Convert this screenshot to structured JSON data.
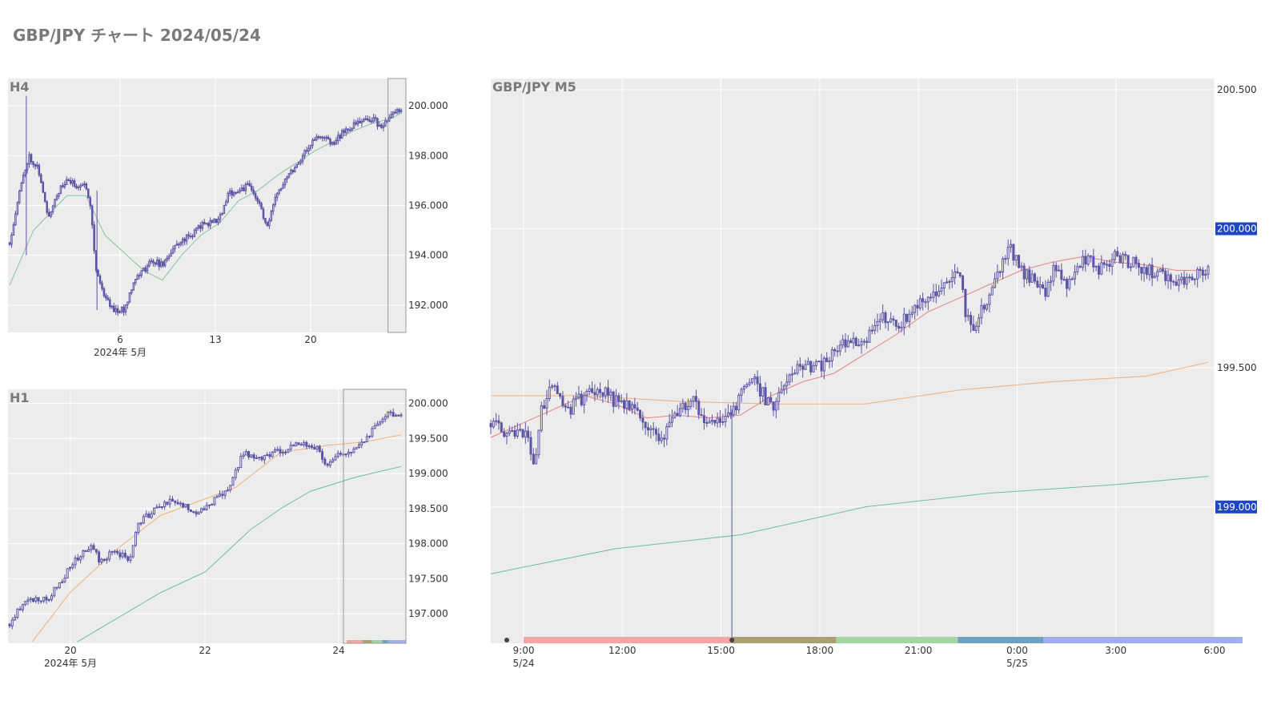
{
  "page": {
    "title": "GBP/JPY チャート 2024/05/24"
  },
  "colors": {
    "candle": "#5c54a4",
    "sma_short": "#e88080",
    "sma_mid": "#f2b07a",
    "sma_long": "#6cc09a",
    "h4_ma": "#86c6a0",
    "price_badge": "#1e46c8",
    "session_sydney": "#f4a6a6",
    "session_tokyo": "#a8a070",
    "session_london": "#a6d4a6",
    "session_overlap": "#6fa0c0",
    "session_newyork": "#a0aef0"
  },
  "chart_data": [
    {
      "id": "h4",
      "type": "candlestick",
      "title": "H4",
      "x_ticks": [
        "6",
        "13",
        "20"
      ],
      "x_sub_label": "2024年 5月",
      "y_ticks": [
        "200.000",
        "198.000",
        "196.000",
        "194.000",
        "192.000"
      ],
      "ylim": [
        190.9,
        201.1
      ],
      "series": [
        {
          "name": "",
          "kind": "candles",
          "path": [
            [
              0,
              194.5
            ],
            [
              2,
              196.5
            ],
            [
              4,
              198
            ],
            [
              6,
              197.5
            ],
            [
              8,
              195.5
            ],
            [
              10,
              196.5
            ],
            [
              12,
              197
            ],
            [
              14,
              196.8
            ],
            [
              16,
              196.8
            ],
            [
              17,
              196
            ],
            [
              18,
              193.5
            ],
            [
              20,
              192.3
            ],
            [
              22,
              191.8
            ],
            [
              24,
              191.8
            ],
            [
              26,
              193
            ],
            [
              28,
              193.4
            ],
            [
              30,
              193.8
            ],
            [
              32,
              193.6
            ],
            [
              34,
              194.2
            ],
            [
              36,
              194.6
            ],
            [
              38,
              194.8
            ],
            [
              40,
              195.2
            ],
            [
              42,
              195.3
            ],
            [
              44,
              195.5
            ],
            [
              46,
              196.5
            ],
            [
              48,
              196.6
            ],
            [
              50,
              196.8
            ],
            [
              52,
              196.2
            ],
            [
              54,
              195.1
            ],
            [
              56,
              196.5
            ],
            [
              58,
              197.2
            ],
            [
              60,
              197.6
            ],
            [
              62,
              198.2
            ],
            [
              64,
              198.7
            ],
            [
              66,
              198.7
            ],
            [
              68,
              198.5
            ],
            [
              70,
              199
            ],
            [
              72,
              199.2
            ],
            [
              74,
              199.4
            ],
            [
              76,
              199.5
            ],
            [
              78,
              199.1
            ],
            [
              80,
              199.6
            ],
            [
              82,
              199.9
            ]
          ],
          "n": 200
        },
        {
          "name": "",
          "kind": "line",
          "color_key": "h4_ma",
          "path": [
            [
              0,
              192.8
            ],
            [
              5,
              195
            ],
            [
              12,
              196.4
            ],
            [
              16,
              196.4
            ],
            [
              20,
              194.8
            ],
            [
              28,
              193.4
            ],
            [
              32,
              193
            ],
            [
              36,
              194
            ],
            [
              40,
              194.8
            ],
            [
              44,
              195.3
            ],
            [
              48,
              196.2
            ],
            [
              52,
              196.6
            ],
            [
              56,
              197.2
            ],
            [
              60,
              197.7
            ],
            [
              64,
              198.2
            ],
            [
              68,
              198.6
            ],
            [
              72,
              199
            ],
            [
              76,
              199.3
            ],
            [
              80,
              199.5
            ],
            [
              82,
              199.7
            ]
          ]
        }
      ],
      "highlight_x": [
        0.955,
        1.0
      ]
    },
    {
      "id": "h1",
      "type": "candlestick",
      "title": "H1",
      "x_ticks": [
        "20",
        "22",
        "24"
      ],
      "x_sub_label": "2024年 5月",
      "y_ticks": [
        "200.000",
        "199.500",
        "199.000",
        "198.500",
        "198.000",
        "197.500",
        "197.000"
      ],
      "ylim": [
        196.58,
        200.2
      ],
      "series": [
        {
          "name": "",
          "kind": "candles",
          "path": [
            [
              0,
              196.85
            ],
            [
              2,
              197.2
            ],
            [
              5,
              197.2
            ],
            [
              7,
              197.5
            ],
            [
              9,
              197.8
            ],
            [
              11,
              197.95
            ],
            [
              12,
              197.75
            ],
            [
              14,
              197.9
            ],
            [
              16,
              197.75
            ],
            [
              17,
              198.3
            ],
            [
              19,
              198.45
            ],
            [
              21,
              198.6
            ],
            [
              23,
              198.55
            ],
            [
              25,
              198.45
            ],
            [
              27,
              198.6
            ],
            [
              29,
              198.75
            ],
            [
              31,
              199.3
            ],
            [
              33,
              199.2
            ],
            [
              35,
              199.3
            ],
            [
              37,
              199.35
            ],
            [
              39,
              199.45
            ],
            [
              41,
              199.35
            ],
            [
              42,
              199.1
            ],
            [
              44,
              199.3
            ],
            [
              46,
              199.35
            ],
            [
              48,
              199.6
            ],
            [
              50,
              199.85
            ],
            [
              52,
              199.85
            ]
          ],
          "n": 150
        },
        {
          "name": "",
          "kind": "line",
          "color_key": "sma_mid",
          "path": [
            [
              3,
              196.6
            ],
            [
              8,
              197.3
            ],
            [
              14,
              197.9
            ],
            [
              20,
              198.4
            ],
            [
              25,
              198.6
            ],
            [
              30,
              198.8
            ],
            [
              36,
              199.3
            ],
            [
              42,
              199.4
            ],
            [
              47,
              199.45
            ],
            [
              52,
              199.55
            ]
          ]
        },
        {
          "name": "",
          "kind": "line",
          "color_key": "sma_long",
          "path": [
            [
              9,
              196.6
            ],
            [
              20,
              197.3
            ],
            [
              26,
              197.6
            ],
            [
              32,
              198.2
            ],
            [
              36,
              198.5
            ],
            [
              40,
              198.75
            ],
            [
              46,
              198.95
            ],
            [
              52,
              199.1
            ]
          ]
        }
      ],
      "highlight_x": [
        0.843,
        1.0
      ]
    },
    {
      "id": "m5",
      "type": "candlestick",
      "title": "GBP/JPY M5",
      "x_ticks": [
        {
          "time": "9:00",
          "date": "5/24"
        },
        {
          "time": "12:00",
          "date": ""
        },
        {
          "time": "15:00",
          "date": ""
        },
        {
          "time": "18:00",
          "date": ""
        },
        {
          "time": "21:00",
          "date": ""
        },
        {
          "time": "0:00",
          "date": "5/25"
        },
        {
          "time": "3:00",
          "date": ""
        },
        {
          "time": "6:00",
          "date": ""
        }
      ],
      "y_ticks": [
        "200.500",
        "200.000",
        "199.500",
        "199.000"
      ],
      "price_badges": [
        "200.000",
        "199.000"
      ],
      "ylim": [
        198.51,
        200.54
      ],
      "xlim_hours": [
        0,
        23
      ],
      "series": [
        {
          "name": "",
          "kind": "candles",
          "path": [
            [
              0,
              199.3
            ],
            [
              0.5,
              199.27
            ],
            [
              1.2,
              199.25
            ],
            [
              1.4,
              199.15
            ],
            [
              1.6,
              199.35
            ],
            [
              2,
              199.45
            ],
            [
              2.5,
              199.35
            ],
            [
              3,
              199.4
            ],
            [
              3.5,
              199.42
            ],
            [
              4,
              199.38
            ],
            [
              4.5,
              199.35
            ],
            [
              5,
              199.3
            ],
            [
              5.5,
              199.25
            ],
            [
              6,
              199.35
            ],
            [
              6.5,
              199.38
            ],
            [
              7,
              199.3
            ],
            [
              7.2,
              199.3
            ],
            [
              7.5,
              199.3
            ],
            [
              8,
              199.4
            ],
            [
              8.5,
              199.45
            ],
            [
              9,
              199.35
            ],
            [
              9.5,
              199.45
            ],
            [
              9.8,
              199.5
            ],
            [
              10.5,
              199.5
            ],
            [
              11,
              199.55
            ],
            [
              11.5,
              199.6
            ],
            [
              12,
              199.6
            ],
            [
              12.2,
              199.65
            ],
            [
              12.5,
              199.7
            ],
            [
              13,
              199.65
            ],
            [
              13.5,
              199.7
            ],
            [
              14,
              199.75
            ],
            [
              14.5,
              199.8
            ],
            [
              15,
              199.85
            ],
            [
              15,
              199.9
            ],
            [
              15.2,
              199.7
            ],
            [
              15.5,
              199.65
            ],
            [
              15.9,
              199.75
            ],
            [
              16.3,
              199.85
            ],
            [
              16.6,
              199.95
            ],
            [
              17,
              199.85
            ],
            [
              17.5,
              199.8
            ],
            [
              17.8,
              199.75
            ],
            [
              18,
              199.85
            ],
            [
              18.5,
              199.8
            ],
            [
              19,
              199.9
            ],
            [
              19.5,
              199.85
            ],
            [
              20,
              199.9
            ],
            [
              20.5,
              199.88
            ],
            [
              21,
              199.85
            ],
            [
              21.5,
              199.83
            ],
            [
              22,
              199.82
            ],
            [
              22.5,
              199.83
            ],
            [
              23,
              199.85
            ]
          ],
          "n": 270
        },
        {
          "name": "",
          "kind": "line",
          "color_key": "sma_short",
          "path": [
            [
              0,
              199.25
            ],
            [
              1,
              199.3
            ],
            [
              2,
              199.35
            ],
            [
              3,
              199.4
            ],
            [
              4,
              199.37
            ],
            [
              5,
              199.32
            ],
            [
              6,
              199.33
            ],
            [
              7,
              199.32
            ],
            [
              8,
              199.33
            ],
            [
              9,
              199.4
            ],
            [
              10,
              199.45
            ],
            [
              11,
              199.48
            ],
            [
              12,
              199.55
            ],
            [
              13,
              199.62
            ],
            [
              14,
              199.7
            ],
            [
              15,
              199.75
            ],
            [
              16,
              199.8
            ],
            [
              17,
              199.85
            ],
            [
              18,
              199.88
            ],
            [
              19,
              199.9
            ],
            [
              20,
              199.88
            ],
            [
              21,
              199.87
            ],
            [
              22,
              199.85
            ],
            [
              23,
              199.85
            ]
          ]
        },
        {
          "name": "",
          "kind": "line",
          "color_key": "sma_mid",
          "path": [
            [
              0,
              199.4
            ],
            [
              3,
              199.4
            ],
            [
              6,
              199.38
            ],
            [
              9,
              199.37
            ],
            [
              12,
              199.37
            ],
            [
              15,
              199.42
            ],
            [
              18,
              199.45
            ],
            [
              21,
              199.47
            ],
            [
              23,
              199.52
            ]
          ]
        },
        {
          "name": "",
          "kind": "line",
          "color_key": "sma_long",
          "path": [
            [
              0,
              198.76
            ],
            [
              4,
              198.85
            ],
            [
              8,
              198.9
            ],
            [
              12,
              199.0
            ],
            [
              16,
              199.05
            ],
            [
              20,
              199.08
            ],
            [
              23,
              199.11
            ]
          ]
        }
      ],
      "spike": {
        "hour": 7.33,
        "low": 198.51,
        "high": 199.35
      },
      "sessions": [
        {
          "color_key": "session_sydney",
          "from_hour": 1.0,
          "to_hour": 7.33
        },
        {
          "color_key": "session_tokyo",
          "from_hour": 7.33,
          "to_hour": 10.5
        },
        {
          "color_key": "session_london",
          "from_hour": 10.5,
          "to_hour": 14.2
        },
        {
          "color_key": "session_overlap",
          "from_hour": 14.2,
          "to_hour": 16.8
        },
        {
          "color_key": "session_newyork",
          "from_hour": 16.8,
          "to_hour": 22.85
        }
      ]
    }
  ]
}
